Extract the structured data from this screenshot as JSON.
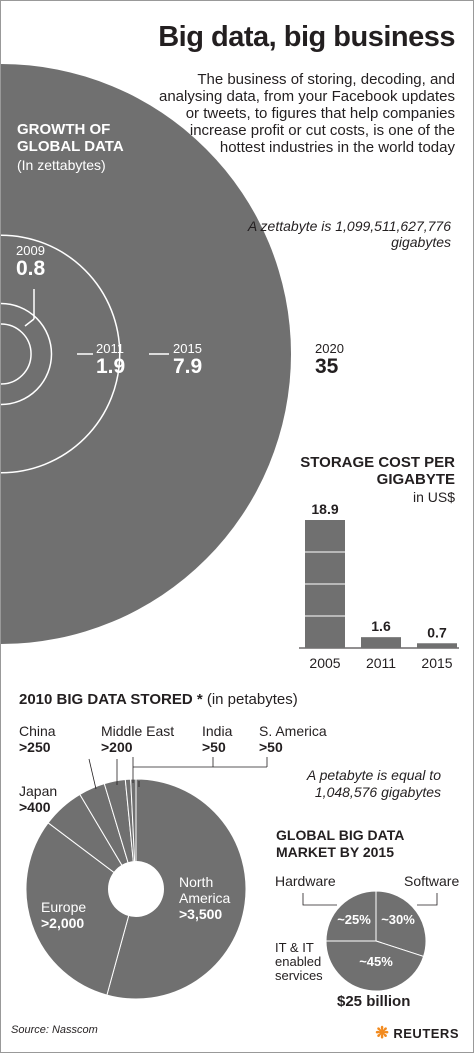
{
  "title": "Big data, big business",
  "intro": "The business of storing, decoding, and analysing data, from your Facebook updates or tweets, to figures that help companies increase profit or cut costs, is one of the hottest industries in the world today",
  "zettabyte_note": "A zettabyte is 1,099,511,627,776 gigabytes",
  "petabyte_note": "A petabyte is equal to 1,048,576 gigabytes",
  "source": "Source: Nasscom",
  "logo_text": "REUTERS",
  "colors": {
    "fill": "#707070",
    "line": "#ffffff",
    "text": "#231f20",
    "logo": "#f28a1e"
  },
  "chart_data": [
    {
      "type": "bubble",
      "title": "GROWTH OF GLOBAL DATA",
      "subtitle": "(In zettabytes)",
      "points": [
        {
          "year": "2009",
          "value": 0.8
        },
        {
          "year": "2011",
          "value": 1.9
        },
        {
          "year": "2015",
          "value": 7.9
        },
        {
          "year": "2020",
          "value": 35
        }
      ]
    },
    {
      "type": "bar",
      "title": "STORAGE COST PER GIGABYTE",
      "ylabel": "in US$",
      "categories": [
        "2005",
        "2011",
        "2015"
      ],
      "values": [
        18.9,
        1.6,
        0.7
      ],
      "value_labels": [
        "18.9",
        "1.6",
        "0.7"
      ]
    },
    {
      "type": "pie",
      "title": "2010 BIG DATA STORED *",
      "subtitle": "(in petabytes)",
      "slices": [
        {
          "name": "North America",
          "label": ">3,500",
          "value": 3500
        },
        {
          "name": "Europe",
          "label": ">2,000",
          "value": 2000
        },
        {
          "name": "Japan",
          "label": ">400",
          "value": 400
        },
        {
          "name": "China",
          "label": ">250",
          "value": 250
        },
        {
          "name": "Middle East",
          "label": ">200",
          "value": 200
        },
        {
          "name": "India",
          "label": ">50",
          "value": 50
        },
        {
          "name": "S. America",
          "label": ">50",
          "value": 50
        }
      ]
    },
    {
      "type": "pie",
      "title": "GLOBAL BIG DATA MARKET BY 2015",
      "total_label": "$25 billion",
      "slices": [
        {
          "name": "Hardware",
          "label": "~25%",
          "value": 25
        },
        {
          "name": "Software",
          "label": "~30%",
          "value": 30
        },
        {
          "name": "IT & IT enabled services",
          "label": "~45%",
          "value": 45
        }
      ]
    }
  ]
}
